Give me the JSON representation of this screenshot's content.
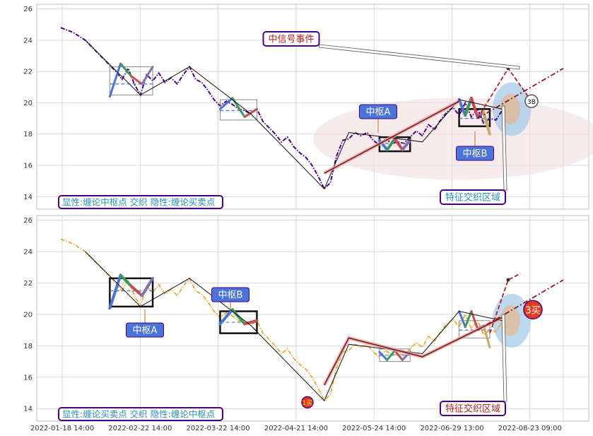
{
  "chart_data": [
    {
      "type": "line",
      "panel": "top",
      "ylim": [
        13.2,
        26.3
      ],
      "yticks": [
        14,
        16,
        18,
        20,
        22,
        24,
        26
      ],
      "grid": true,
      "legend_text": "显性:缠论中枢点 交织 隐性:缠论买卖点",
      "price_series": {
        "style": "dash-dot",
        "color": "#4b0082",
        "points": [
          [
            1,
            24.8
          ],
          [
            3,
            24.5
          ],
          [
            5,
            24.0
          ],
          [
            8,
            22.8
          ],
          [
            10,
            22.0
          ],
          [
            11,
            21.5
          ],
          [
            12,
            22.2
          ],
          [
            13,
            21.2
          ],
          [
            14,
            20.5
          ],
          [
            15,
            21.8
          ],
          [
            16,
            21.4
          ],
          [
            17,
            21.9
          ],
          [
            18,
            21.3
          ],
          [
            19,
            21.6
          ],
          [
            20,
            21.2
          ],
          [
            21,
            21.8
          ],
          [
            22,
            22.3
          ],
          [
            23,
            21.5
          ],
          [
            24,
            21.3
          ],
          [
            25,
            20.8
          ],
          [
            26,
            20.2
          ],
          [
            27,
            19.8
          ],
          [
            28,
            20.1
          ],
          [
            29,
            19.9
          ],
          [
            30,
            19.6
          ],
          [
            31,
            19.5
          ],
          [
            32,
            19.3
          ],
          [
            33,
            19.6
          ],
          [
            34,
            18.8
          ],
          [
            35,
            18.4
          ],
          [
            36,
            18.0
          ],
          [
            37,
            17.5
          ],
          [
            38,
            17.8
          ],
          [
            39,
            17.2
          ],
          [
            40,
            16.8
          ],
          [
            41,
            16.5
          ],
          [
            42,
            16.0
          ],
          [
            43,
            15.3
          ],
          [
            44,
            14.5
          ],
          [
            45,
            14.9
          ],
          [
            46,
            16.6
          ],
          [
            47,
            17.6
          ],
          [
            48,
            17.7
          ],
          [
            49,
            18.1
          ],
          [
            50,
            17.9
          ],
          [
            51,
            18.1
          ],
          [
            52,
            17.6
          ],
          [
            53,
            17.3
          ],
          [
            54,
            17.7
          ],
          [
            55,
            17.4
          ],
          [
            56,
            17.5
          ],
          [
            57,
            17.4
          ],
          [
            58,
            17.8
          ],
          [
            59,
            18.2
          ],
          [
            60,
            17.9
          ],
          [
            61,
            18.6
          ],
          [
            62,
            18.3
          ],
          [
            63,
            18.9
          ],
          [
            64,
            19.4
          ],
          [
            65,
            19.7
          ],
          [
            66,
            19.2
          ],
          [
            67,
            20.0
          ],
          [
            68,
            19.1
          ],
          [
            69,
            19.6
          ],
          [
            70,
            18.7
          ],
          [
            71,
            19.0
          ],
          [
            72,
            18.9
          ],
          [
            73,
            19.5
          ]
        ]
      },
      "bi_lines": [
        [
          [
            5,
            24.0
          ],
          [
            14,
            20.5
          ],
          [
            22,
            22.3
          ],
          [
            32,
            19.3
          ],
          [
            44,
            14.5
          ],
          [
            48,
            18.1
          ],
          [
            60,
            17.5
          ],
          [
            66,
            20.2
          ],
          [
            73,
            19.6
          ]
        ]
      ],
      "double_line": [
        [
          44,
          15.5
        ],
        [
          66,
          20.1
        ]
      ],
      "projections": [
        {
          "style": "dashed",
          "color": "#b22222",
          "points": [
            [
              69,
              19.0
            ],
            [
              74,
              22.2
            ],
            [
              78,
              20.0
            ]
          ]
        },
        {
          "style": "dash-dot",
          "color": "#8b1a1a",
          "points": [
            [
              69,
              19.0
            ],
            [
              83,
              22.2
            ]
          ]
        }
      ],
      "zhongshu_boxes": [
        {
          "x": [
            9,
            16
          ],
          "y": [
            20.5,
            22.3
          ],
          "mid": 21.2,
          "style": "thin",
          "legs": [
            [
              9,
              20.4
            ],
            [
              10,
              22.5
            ],
            [
              11,
              21.7
            ],
            [
              12,
              21.2
            ],
            [
              13,
              22.3
            ]
          ]
        },
        {
          "x": [
            27,
            33
          ],
          "y": [
            18.9,
            20.2
          ],
          "mid": 19.5,
          "style": "thin",
          "legs": [
            [
              28,
              19.6
            ],
            [
              29,
              20.3
            ],
            [
              30,
              19.1
            ],
            [
              31,
              19.6
            ]
          ]
        },
        {
          "x": [
            53,
            58
          ],
          "y": [
            16.9,
            17.8
          ],
          "mid": 17.4,
          "style": "bold",
          "legs": [
            [
              53,
              17.6
            ],
            [
              54,
              17.0
            ],
            [
              55,
              17.7
            ],
            [
              56,
              17.0
            ],
            [
              57,
              17.6
            ]
          ]
        },
        {
          "x": [
            66,
            71
          ],
          "y": [
            18.5,
            19.6
          ],
          "mid": 19.0,
          "style": "bold",
          "legs": [
            [
              66,
              20.2
            ],
            [
              67,
              19.2
            ],
            [
              68,
              20.3
            ],
            [
              69,
              19.1
            ],
            [
              70,
              19.4
            ],
            [
              71,
              18.0
            ]
          ]
        }
      ],
      "callouts": [
        {
          "label": "中枢A",
          "style": "blue"
        },
        {
          "label": "中枢B",
          "style": "blue"
        },
        {
          "label": "中信号事件",
          "style": "outline"
        },
        {
          "label": "特征交织区域",
          "style": "outline"
        }
      ],
      "markers": [
        {
          "label": "3B",
          "style": "white-circle"
        }
      ]
    },
    {
      "type": "line",
      "panel": "bottom",
      "ylim": [
        13.2,
        26.3
      ],
      "yticks": [
        14,
        16,
        18,
        20,
        22,
        24,
        26
      ],
      "grid": true,
      "legend_text": "显性:缠论买卖点 交织 隐性:缠论中枢点",
      "price_series": {
        "style": "dash-dot",
        "color": "#e8a93a",
        "points": [
          [
            1,
            24.8
          ],
          [
            3,
            24.5
          ],
          [
            5,
            24.0
          ],
          [
            8,
            22.8
          ],
          [
            10,
            22.0
          ],
          [
            11,
            21.5
          ],
          [
            12,
            22.2
          ],
          [
            13,
            21.2
          ],
          [
            14,
            20.5
          ],
          [
            15,
            21.8
          ],
          [
            16,
            21.4
          ],
          [
            17,
            21.9
          ],
          [
            18,
            21.3
          ],
          [
            19,
            21.6
          ],
          [
            20,
            21.2
          ],
          [
            21,
            21.8
          ],
          [
            22,
            22.3
          ],
          [
            23,
            21.5
          ],
          [
            24,
            21.3
          ],
          [
            25,
            20.8
          ],
          [
            26,
            20.2
          ],
          [
            27,
            19.8
          ],
          [
            28,
            20.1
          ],
          [
            29,
            19.9
          ],
          [
            30,
            19.6
          ],
          [
            31,
            19.5
          ],
          [
            32,
            19.3
          ],
          [
            33,
            19.6
          ],
          [
            34,
            18.8
          ],
          [
            35,
            18.4
          ],
          [
            36,
            18.0
          ],
          [
            37,
            17.5
          ],
          [
            38,
            17.8
          ],
          [
            39,
            17.2
          ],
          [
            40,
            16.8
          ],
          [
            41,
            16.5
          ],
          [
            42,
            16.0
          ],
          [
            43,
            15.3
          ],
          [
            44,
            14.5
          ],
          [
            45,
            14.9
          ],
          [
            46,
            16.6
          ],
          [
            47,
            17.6
          ],
          [
            48,
            17.7
          ],
          [
            49,
            18.1
          ],
          [
            50,
            17.9
          ],
          [
            51,
            18.1
          ],
          [
            52,
            17.6
          ],
          [
            53,
            17.3
          ],
          [
            54,
            17.7
          ],
          [
            55,
            17.4
          ],
          [
            56,
            17.5
          ],
          [
            57,
            17.4
          ],
          [
            58,
            17.8
          ],
          [
            59,
            18.2
          ],
          [
            60,
            17.9
          ],
          [
            61,
            18.6
          ],
          [
            62,
            18.3
          ],
          [
            63,
            18.9
          ],
          [
            64,
            19.4
          ],
          [
            65,
            19.7
          ],
          [
            66,
            19.2
          ],
          [
            67,
            20.0
          ],
          [
            68,
            19.1
          ],
          [
            69,
            19.6
          ],
          [
            70,
            18.7
          ],
          [
            71,
            19.0
          ],
          [
            72,
            18.9
          ],
          [
            73,
            19.5
          ]
        ]
      },
      "bi_lines": [
        [
          [
            5,
            24.0
          ],
          [
            14,
            20.5
          ],
          [
            22,
            22.3
          ],
          [
            32,
            19.3
          ],
          [
            44,
            14.5
          ],
          [
            48,
            18.1
          ],
          [
            60,
            17.5
          ],
          [
            66,
            20.2
          ],
          [
            73,
            19.6
          ]
        ]
      ],
      "double_line": [
        [
          44,
          15.5
        ],
        [
          48,
          18.5
        ],
        [
          60,
          17.3
        ],
        [
          73,
          19.8
        ]
      ],
      "projections": [
        {
          "style": "dashed",
          "color": "#b22222",
          "points": [
            [
              71,
              18.8
            ],
            [
              74,
              22.2
            ],
            [
              76,
              22.6
            ]
          ]
        },
        {
          "style": "dash-dot",
          "color": "#8b1a1a",
          "points": [
            [
              69,
              19.0
            ],
            [
              83,
              22.2
            ]
          ]
        }
      ],
      "zhongshu_boxes": [
        {
          "x": [
            9,
            16
          ],
          "y": [
            20.5,
            22.3
          ],
          "mid": 21.5,
          "style": "bold",
          "legs": [
            [
              9,
              20.4
            ],
            [
              10,
              22.5
            ],
            [
              11,
              21.8
            ],
            [
              12,
              21.2
            ],
            [
              13,
              22.3
            ]
          ]
        },
        {
          "x": [
            27,
            33
          ],
          "y": [
            18.8,
            20.2
          ],
          "mid": 19.5,
          "style": "bold",
          "legs": [
            [
              28,
              19.4
            ],
            [
              29,
              20.3
            ],
            [
              30,
              19.4
            ],
            [
              31,
              19.6
            ]
          ]
        },
        {
          "x": [
            53,
            58
          ],
          "y": [
            17.0,
            17.8
          ],
          "mid": 17.4,
          "style": "thin",
          "legs": [
            [
              53,
              17.6
            ],
            [
              54,
              17.1
            ],
            [
              55,
              17.7
            ],
            [
              56,
              17.1
            ],
            [
              57,
              17.6
            ]
          ]
        },
        {
          "x": [
            66,
            71
          ],
          "y": [
            18.5,
            19.6
          ],
          "mid": 19.0,
          "style": "thin",
          "legs": [
            [
              66,
              20.2
            ],
            [
              67,
              19.2
            ],
            [
              68,
              20.2
            ],
            [
              69,
              19.1
            ],
            [
              70,
              19.3
            ],
            [
              71,
              17.9
            ]
          ]
        }
      ],
      "callouts": [
        {
          "label": "中枢A",
          "style": "blue"
        },
        {
          "label": "中枢B",
          "style": "blue"
        },
        {
          "label": "特征交织区域",
          "style": "outline"
        }
      ],
      "markers": [
        {
          "label": "1买",
          "style": "red-circle-small"
        },
        {
          "label": "3买",
          "style": "red-circle"
        }
      ]
    }
  ],
  "x_axis": {
    "ticks": [
      {
        "x": 0,
        "label": "2022-01-18 14:00"
      },
      {
        "x": 10,
        "label": "2022-02-22 14:00"
      },
      {
        "x": 20,
        "label": "2022-03-22 14:00"
      },
      {
        "x": 30,
        "label": "2022-04-21 14:00"
      },
      {
        "x": 40,
        "label": "2022-05-24 14:00"
      },
      {
        "x": 50,
        "label": "2022-06-29 13:00"
      },
      {
        "x": 60,
        "label": "2022-08-23 09:00"
      }
    ]
  },
  "colors": {
    "callout_blue": "#4a74d9",
    "callout_border": "#4b0082",
    "grid": "#cfcfcf",
    "leg_colors": [
      "#4a74d9",
      "#3d9a5c",
      "#c44e52",
      "#8172b2",
      "#c9a86a",
      "#4c9ecf"
    ]
  }
}
